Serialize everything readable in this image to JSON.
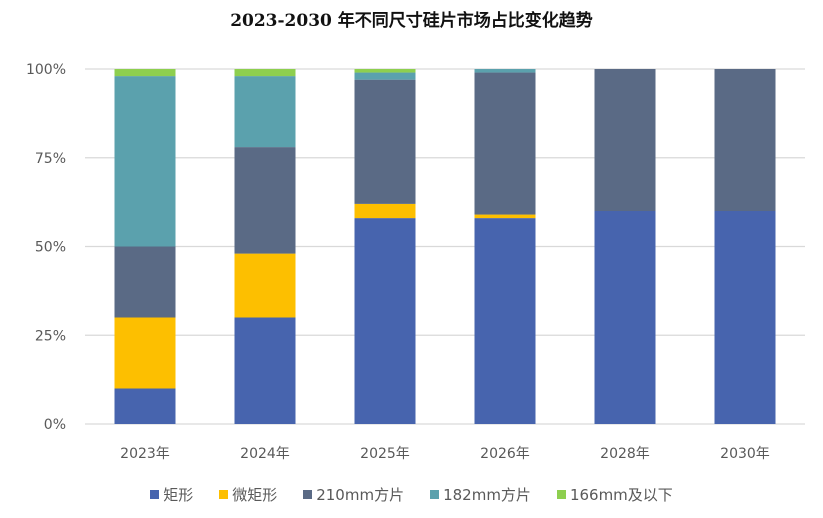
{
  "chart_data": {
    "type": "bar",
    "stacked": true,
    "title": "2023-2030 年不同尺寸硅片市场占比变化趋势",
    "xlabel": "",
    "ylabel": "",
    "categories": [
      "2023年",
      "2024年",
      "2025年",
      "2026年",
      "2028年",
      "2030年"
    ],
    "yticks": [
      "0%",
      "25%",
      "50%",
      "75%",
      "100%"
    ],
    "ylim": [
      0,
      100
    ],
    "grid": true,
    "legend_position": "bottom",
    "series": [
      {
        "name": "矩形",
        "color": "#4764AE",
        "values": [
          10,
          30,
          58,
          58,
          60,
          60
        ]
      },
      {
        "name": "微矩形",
        "color": "#FDBF00",
        "values": [
          20,
          18,
          4,
          1,
          0,
          0
        ]
      },
      {
        "name": "210mm方片",
        "color": "#5A6A85",
        "values": [
          20,
          30,
          35,
          40,
          40,
          40
        ]
      },
      {
        "name": "182mm方片",
        "color": "#5BA1AD",
        "values": [
          48,
          20,
          2,
          1,
          0,
          0
        ]
      },
      {
        "name": "166mm及以下",
        "color": "#8ECF4F",
        "values": [
          2,
          2,
          1,
          0,
          0,
          0
        ]
      }
    ]
  }
}
